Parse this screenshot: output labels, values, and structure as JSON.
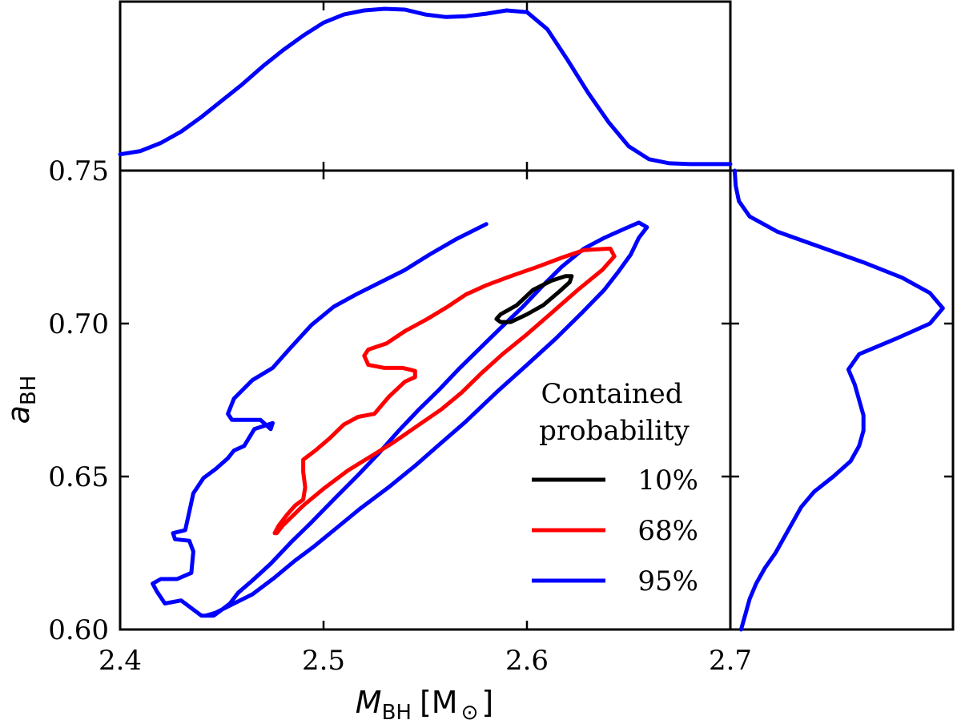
{
  "chart_data": {
    "type": "contour",
    "title": "",
    "xlabel": {
      "symbol": "M",
      "subscript": "BH",
      "unit_open": "[M",
      "unit_sub": "⊙",
      "unit_close": "]"
    },
    "ylabel": {
      "symbol": "a",
      "subscript": "BH"
    },
    "xlim": [
      2.4,
      2.7
    ],
    "ylim": [
      0.6,
      0.75
    ],
    "xticks": [
      2.4,
      2.5,
      2.6,
      2.7
    ],
    "xtick_labels": [
      "2.4",
      "2.5",
      "2.6",
      "2.7"
    ],
    "yticks": [
      0.6,
      0.65,
      0.7,
      0.75
    ],
    "ytick_labels": [
      "0.60",
      "0.65",
      "0.70",
      "0.75"
    ],
    "legend": {
      "title_line1": "Contained",
      "title_line2": "probability",
      "placement": "lower-right",
      "entries": [
        {
          "label": "10%",
          "color": "#000000"
        },
        {
          "label": "68%",
          "color": "#ff0000"
        },
        {
          "label": "95%",
          "color": "#0000ff"
        }
      ]
    },
    "contours": [
      {
        "level": "10%",
        "color": "#000000",
        "points": [
          [
            2.585,
            0.7015
          ],
          [
            2.587,
            0.703
          ],
          [
            2.595,
            0.706
          ],
          [
            2.603,
            0.711
          ],
          [
            2.612,
            0.714
          ],
          [
            2.619,
            0.7155
          ],
          [
            2.622,
            0.7155
          ],
          [
            2.621,
            0.7135
          ],
          [
            2.616,
            0.7105
          ],
          [
            2.608,
            0.706
          ],
          [
            2.6,
            0.703
          ],
          [
            2.592,
            0.7005
          ],
          [
            2.587,
            0.7005
          ],
          [
            2.585,
            0.7015
          ]
        ]
      },
      {
        "level": "68%",
        "color": "#ff0000",
        "points": [
          [
            2.476,
            0.6315
          ],
          [
            2.478,
            0.634
          ],
          [
            2.482,
            0.6375
          ],
          [
            2.486,
            0.6405
          ],
          [
            2.49,
            0.6425
          ],
          [
            2.491,
            0.6465
          ],
          [
            2.49,
            0.6515
          ],
          [
            2.49,
            0.6555
          ],
          [
            2.496,
            0.6585
          ],
          [
            2.503,
            0.6625
          ],
          [
            2.51,
            0.667
          ],
          [
            2.517,
            0.6695
          ],
          [
            2.525,
            0.6705
          ],
          [
            2.532,
            0.676
          ],
          [
            2.54,
            0.681
          ],
          [
            2.545,
            0.6825
          ],
          [
            2.545,
            0.6845
          ],
          [
            2.539,
            0.6855
          ],
          [
            2.53,
            0.6855
          ],
          [
            2.522,
            0.6865
          ],
          [
            2.52,
            0.6895
          ],
          [
            2.522,
            0.6915
          ],
          [
            2.531,
            0.6935
          ],
          [
            2.54,
            0.6975
          ],
          [
            2.551,
            0.7015
          ],
          [
            2.561,
            0.7055
          ],
          [
            2.57,
            0.7095
          ],
          [
            2.58,
            0.7125
          ],
          [
            2.592,
            0.7155
          ],
          [
            2.605,
            0.7185
          ],
          [
            2.617,
            0.7215
          ],
          [
            2.628,
            0.724
          ],
          [
            2.641,
            0.7245
          ],
          [
            2.643,
            0.722
          ],
          [
            2.637,
            0.7175
          ],
          [
            2.625,
            0.711
          ],
          [
            2.613,
            0.704
          ],
          [
            2.6,
            0.6965
          ],
          [
            2.588,
            0.69
          ],
          [
            2.578,
            0.684
          ],
          [
            2.568,
            0.6775
          ],
          [
            2.558,
            0.672
          ],
          [
            2.546,
            0.6665
          ],
          [
            2.534,
            0.661
          ],
          [
            2.523,
            0.6565
          ],
          [
            2.512,
            0.652
          ],
          [
            2.5,
            0.646
          ],
          [
            2.49,
            0.6405
          ],
          [
            2.48,
            0.634
          ],
          [
            2.477,
            0.6315
          ],
          [
            2.476,
            0.6315
          ]
        ]
      },
      {
        "level": "95%",
        "color": "#0000ff",
        "points": [
          [
            2.442,
            0.6045
          ],
          [
            2.446,
            0.6045
          ],
          [
            2.45,
            0.6065
          ],
          [
            2.454,
            0.6085
          ],
          [
            2.458,
            0.612
          ],
          [
            2.465,
            0.616
          ],
          [
            2.474,
            0.6215
          ],
          [
            2.484,
            0.6285
          ],
          [
            2.494,
            0.635
          ],
          [
            2.505,
            0.6425
          ],
          [
            2.517,
            0.6505
          ],
          [
            2.527,
            0.6575
          ],
          [
            2.537,
            0.665
          ],
          [
            2.547,
            0.672
          ],
          [
            2.557,
            0.6785
          ],
          [
            2.567,
            0.6855
          ],
          [
            2.577,
            0.692
          ],
          [
            2.587,
            0.6985
          ],
          [
            2.598,
            0.7055
          ],
          [
            2.608,
            0.7125
          ],
          [
            2.617,
            0.7185
          ],
          [
            2.628,
            0.7245
          ],
          [
            2.638,
            0.728
          ],
          [
            2.648,
            0.731
          ],
          [
            2.655,
            0.733
          ],
          [
            2.659,
            0.7315
          ],
          [
            2.655,
            0.728
          ],
          [
            2.651,
            0.7225
          ],
          [
            2.645,
            0.717
          ],
          [
            2.638,
            0.711
          ],
          [
            2.627,
            0.7035
          ],
          [
            2.614,
            0.695
          ],
          [
            2.6,
            0.6865
          ],
          [
            2.585,
            0.6775
          ],
          [
            2.57,
            0.668
          ],
          [
            2.557,
            0.6605
          ],
          [
            2.545,
            0.6535
          ],
          [
            2.532,
            0.6465
          ],
          [
            2.518,
            0.6395
          ],
          [
            2.507,
            0.6335
          ],
          [
            2.495,
            0.627
          ],
          [
            2.486,
            0.6225
          ],
          [
            2.476,
            0.617
          ],
          [
            2.465,
            0.6115
          ],
          [
            2.456,
            0.6085
          ],
          [
            2.447,
            0.6055
          ],
          [
            2.442,
            0.6045
          ],
          [
            2.44,
            0.6045
          ],
          [
            2.43,
            0.6095
          ],
          [
            2.422,
            0.6085
          ],
          [
            2.418,
            0.6125
          ],
          [
            2.416,
            0.615
          ],
          [
            2.42,
            0.6165
          ],
          [
            2.428,
            0.6165
          ],
          [
            2.435,
            0.6185
          ],
          [
            2.436,
            0.6255
          ],
          [
            2.434,
            0.629
          ],
          [
            2.427,
            0.6295
          ],
          [
            2.426,
            0.6315
          ],
          [
            2.432,
            0.6325
          ],
          [
            2.434,
            0.6385
          ],
          [
            2.436,
            0.6445
          ],
          [
            2.441,
            0.6495
          ],
          [
            2.447,
            0.6525
          ],
          [
            2.453,
            0.656
          ],
          [
            2.456,
            0.6585
          ],
          [
            2.461,
            0.66
          ],
          [
            2.466,
            0.6655
          ],
          [
            2.475,
            0.6675
          ],
          [
            2.474,
            0.6655
          ],
          [
            2.469,
            0.6685
          ],
          [
            2.461,
            0.6685
          ],
          [
            2.455,
            0.6685
          ],
          [
            2.453,
            0.6705
          ],
          [
            2.456,
            0.6755
          ],
          [
            2.465,
            0.6815
          ],
          [
            2.475,
            0.6855
          ],
          [
            2.483,
            0.6915
          ],
          [
            2.494,
            0.6995
          ],
          [
            2.505,
            0.7055
          ],
          [
            2.516,
            0.7095
          ],
          [
            2.528,
            0.7135
          ],
          [
            2.54,
            0.7175
          ],
          [
            2.552,
            0.7225
          ],
          [
            2.565,
            0.7275
          ],
          [
            2.58,
            0.7325
          ]
        ]
      }
    ],
    "marginal_x": {
      "color": "#0000ff",
      "points": [
        [
          2.4,
          0.1
        ],
        [
          2.41,
          0.12
        ],
        [
          2.42,
          0.17
        ],
        [
          2.43,
          0.24
        ],
        [
          2.44,
          0.33
        ],
        [
          2.45,
          0.43
        ],
        [
          2.46,
          0.53
        ],
        [
          2.47,
          0.64
        ],
        [
          2.48,
          0.74
        ],
        [
          2.49,
          0.83
        ],
        [
          2.5,
          0.91
        ],
        [
          2.51,
          0.96
        ],
        [
          2.52,
          0.985
        ],
        [
          2.53,
          0.995
        ],
        [
          2.54,
          0.99
        ],
        [
          2.55,
          0.96
        ],
        [
          2.56,
          0.945
        ],
        [
          2.57,
          0.95
        ],
        [
          2.58,
          0.965
        ],
        [
          2.59,
          0.985
        ],
        [
          2.6,
          0.975
        ],
        [
          2.61,
          0.87
        ],
        [
          2.62,
          0.68
        ],
        [
          2.63,
          0.48
        ],
        [
          2.64,
          0.3
        ],
        [
          2.65,
          0.15
        ],
        [
          2.66,
          0.07
        ],
        [
          2.67,
          0.045
        ],
        [
          2.68,
          0.04
        ],
        [
          2.7,
          0.04
        ]
      ]
    },
    "marginal_y": {
      "color": "#0000ff",
      "points": [
        [
          0.75,
          0.02
        ],
        [
          0.745,
          0.025
        ],
        [
          0.74,
          0.04
        ],
        [
          0.735,
          0.09
        ],
        [
          0.73,
          0.22
        ],
        [
          0.725,
          0.42
        ],
        [
          0.72,
          0.62
        ],
        [
          0.715,
          0.8
        ],
        [
          0.71,
          0.93
        ],
        [
          0.705,
          0.99
        ],
        [
          0.7,
          0.93
        ],
        [
          0.695,
          0.77
        ],
        [
          0.69,
          0.6
        ],
        [
          0.685,
          0.55
        ],
        [
          0.68,
          0.58
        ],
        [
          0.675,
          0.6
        ],
        [
          0.67,
          0.62
        ],
        [
          0.665,
          0.62
        ],
        [
          0.66,
          0.6
        ],
        [
          0.655,
          0.56
        ],
        [
          0.65,
          0.48
        ],
        [
          0.645,
          0.39
        ],
        [
          0.64,
          0.33
        ],
        [
          0.635,
          0.29
        ],
        [
          0.63,
          0.25
        ],
        [
          0.625,
          0.21
        ],
        [
          0.62,
          0.16
        ],
        [
          0.615,
          0.12
        ],
        [
          0.61,
          0.09
        ],
        [
          0.605,
          0.07
        ],
        [
          0.6,
          0.05
        ]
      ]
    }
  }
}
